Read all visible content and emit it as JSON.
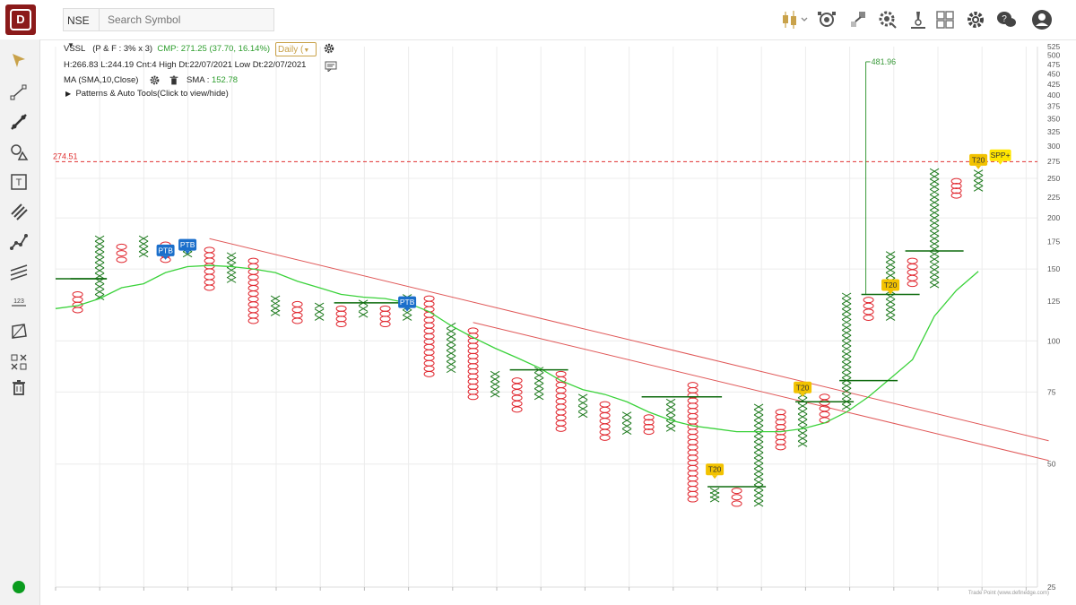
{
  "header": {
    "exchange": "NSE",
    "search_placeholder": "Search Symbol"
  },
  "info": {
    "symbol": "VSSL",
    "chart_params": "(P & F : 3% x 3)",
    "cmp": "CMP: 271.25 (37.70, 16.14%)",
    "timeframe": "Daily (",
    "ohlc_line": "H:266.83 L:244.19 Cnt:4 High Dt:22/07/2021 Low Dt:22/07/2021",
    "ma_label": "MA (SMA,10,Close)",
    "sma_label": "SMA :",
    "sma_value": "152.78",
    "patterns_label": "Patterns & Auto Tools(Click to view/hide)"
  },
  "watermark": "Trade Point (www.definedge.com)",
  "colors": {
    "x": "#1e7a1e",
    "o": "#e0262e",
    "sma": "#3ad23a",
    "trend": "#e05858",
    "ptb": "#1b6fcb",
    "t20": "#f2c200",
    "spp": "#ffe600",
    "hline": "#0e6b0e",
    "target": "#3a9a3a",
    "ref": "#e03030"
  },
  "chart_data": {
    "type": "point-and-figure",
    "scale": "log",
    "ylim": [
      25,
      525
    ],
    "y_ticks": [
      25,
      50,
      75,
      100,
      125,
      150,
      175,
      200,
      225,
      250,
      275,
      300,
      325,
      350,
      375,
      400,
      425,
      450,
      475,
      500,
      525
    ],
    "reference_level": 274.51,
    "target_level": 481.96,
    "columns": [
      {
        "type": "O",
        "high": 130,
        "low": 119
      },
      {
        "type": "X",
        "high": 178,
        "low": 128
      },
      {
        "type": "O",
        "high": 170,
        "low": 158
      },
      {
        "type": "X",
        "high": 178,
        "low": 163
      },
      {
        "type": "O",
        "high": 172,
        "low": 158
      },
      {
        "type": "X",
        "high": 173,
        "low": 163
      },
      {
        "type": "O",
        "high": 167,
        "low": 135
      },
      {
        "type": "X",
        "high": 162,
        "low": 141
      },
      {
        "type": "O",
        "high": 157,
        "low": 112
      },
      {
        "type": "X",
        "high": 127,
        "low": 117
      },
      {
        "type": "O",
        "high": 123,
        "low": 112
      },
      {
        "type": "X",
        "high": 122,
        "low": 114
      },
      {
        "type": "O",
        "high": 120,
        "low": 110
      },
      {
        "type": "X",
        "high": 124,
        "low": 116
      },
      {
        "type": "O",
        "high": 120,
        "low": 110
      },
      {
        "type": "X",
        "high": 128,
        "low": 114
      },
      {
        "type": "O",
        "high": 127,
        "low": 83
      },
      {
        "type": "X",
        "high": 109,
        "low": 85
      },
      {
        "type": "O",
        "high": 106,
        "low": 73
      },
      {
        "type": "X",
        "high": 83,
        "low": 74
      },
      {
        "type": "O",
        "high": 80,
        "low": 68
      },
      {
        "type": "X",
        "high": 85,
        "low": 73
      },
      {
        "type": "O",
        "high": 83,
        "low": 61
      },
      {
        "type": "X",
        "high": 73,
        "low": 66
      },
      {
        "type": "O",
        "high": 70,
        "low": 58
      },
      {
        "type": "X",
        "high": 66,
        "low": 60
      },
      {
        "type": "O",
        "high": 65,
        "low": 60
      },
      {
        "type": "X",
        "high": 71,
        "low": 61
      },
      {
        "type": "O",
        "high": 78,
        "low": 41
      },
      {
        "type": "X",
        "high": 43,
        "low": 41
      },
      {
        "type": "O",
        "high": 43,
        "low": 40
      },
      {
        "type": "X",
        "high": 69,
        "low": 40
      },
      {
        "type": "O",
        "high": 67,
        "low": 55
      },
      {
        "type": "X",
        "high": 76,
        "low": 56
      },
      {
        "type": "O",
        "high": 73,
        "low": 64
      },
      {
        "type": "X",
        "high": 129,
        "low": 69
      },
      {
        "type": "O",
        "high": 126,
        "low": 114
      },
      {
        "type": "X",
        "high": 163,
        "low": 114
      },
      {
        "type": "O",
        "high": 157,
        "low": 138
      },
      {
        "type": "X",
        "high": 260,
        "low": 137
      },
      {
        "type": "O",
        "high": 246,
        "low": 227
      },
      {
        "type": "X",
        "high": 258,
        "low": 236
      }
    ],
    "sma": [
      122,
      127,
      135,
      138,
      147,
      152,
      153,
      152,
      150,
      147,
      140,
      135,
      130,
      128,
      127,
      124,
      118,
      109,
      102,
      96,
      91,
      86,
      80,
      76,
      74,
      71,
      67,
      64,
      62,
      61,
      60,
      60,
      60,
      61,
      63,
      67,
      73,
      81,
      90,
      115,
      133,
      148
    ],
    "breakouts": [
      {
        "col": 4,
        "level": 158,
        "label": "PTB"
      },
      {
        "col": 5,
        "level": 163,
        "label": "PTB"
      },
      {
        "col": 15,
        "level": 118,
        "label": "PTB"
      },
      {
        "col": 29,
        "level": 46,
        "label": "T20"
      },
      {
        "col": 33,
        "level": 73,
        "label": "T20"
      },
      {
        "col": 37,
        "level": 130,
        "label": "T20"
      },
      {
        "col": 41,
        "level": 263,
        "label": "T20"
      },
      {
        "col": 42,
        "level": 270,
        "label": "SPP+"
      }
    ],
    "breakout_lines": [
      {
        "from": 0,
        "to": 1,
        "level": 142
      },
      {
        "from": 12,
        "to": 15,
        "level": 124
      },
      {
        "from": 20,
        "to": 22,
        "level": 85
      },
      {
        "from": 26,
        "to": 29,
        "level": 73
      },
      {
        "from": 29,
        "to": 31,
        "level": 44
      },
      {
        "from": 33,
        "to": 35,
        "level": 71
      },
      {
        "from": 35,
        "to": 37,
        "level": 80
      },
      {
        "from": 36,
        "to": 38,
        "level": 130
      },
      {
        "from": 38,
        "to": 40,
        "level": 166
      }
    ],
    "trendlines": [
      {
        "from": [
          6,
          178
        ],
        "to": [
          44.2,
          57
        ]
      },
      {
        "from": [
          18,
          111
        ],
        "to": [
          44.2,
          51
        ]
      }
    ]
  }
}
